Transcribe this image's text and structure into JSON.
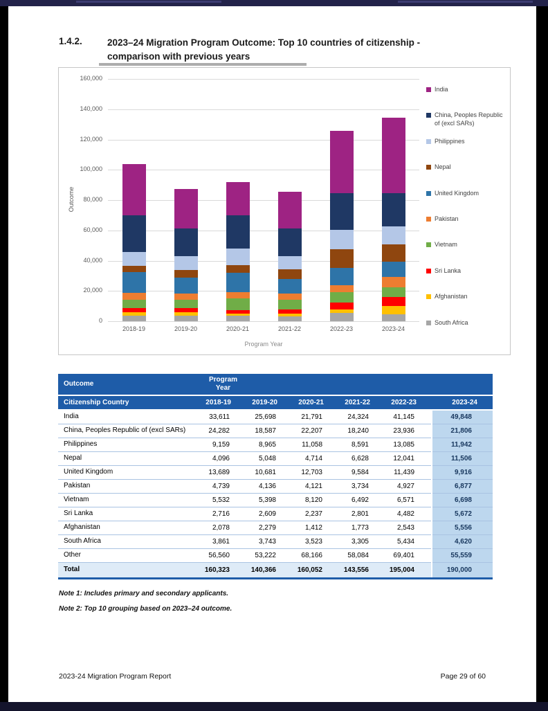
{
  "page": {
    "section_number": "1.4.2.",
    "title": "2023–24 Migration Program Outcome: Top 10 countries of citizenship - comparison with previous years",
    "note1": "Note 1: Includes primary and secondary applicants.",
    "note2": "Note 2: Top 10 grouping based on 2023–24 outcome.",
    "footer_left": "2023-24 Migration Program Report",
    "footer_right": "Page 29 of 60"
  },
  "chart_data": {
    "type": "bar",
    "stacked": true,
    "title": "",
    "xlabel": "Program Year",
    "ylabel": "Outcome",
    "ylim": [
      0,
      160000
    ],
    "ytick_step": 20000,
    "yticks": [
      "160,000",
      "140,000",
      "120,000",
      "100,000",
      "80,000",
      "60,000",
      "40,000",
      "20,000",
      "0"
    ],
    "categories": [
      "2018-19",
      "2019-20",
      "2020-21",
      "2021-22",
      "2022-23",
      "2023-24"
    ],
    "grid": true,
    "legend_position": "right",
    "stack_order": "legend order is top-of-stack first",
    "series": [
      {
        "name": "India",
        "color": "#9E2383",
        "values": [
          33611,
          25698,
          21791,
          24324,
          41145,
          49848
        ]
      },
      {
        "name": "China, Peoples Republic of (excl SARs)",
        "color": "#1F3864",
        "values": [
          24282,
          18587,
          22207,
          18240,
          23936,
          21806
        ]
      },
      {
        "name": "Philippines",
        "color": "#B4C7E7",
        "values": [
          9159,
          8965,
          11058,
          8591,
          13085,
          11942
        ]
      },
      {
        "name": "Nepal",
        "color": "#8F460F",
        "values": [
          4096,
          5048,
          4714,
          6628,
          12041,
          11506
        ]
      },
      {
        "name": "United Kingdom",
        "color": "#2E74A8",
        "values": [
          13689,
          10681,
          12703,
          9584,
          11439,
          9916
        ]
      },
      {
        "name": "Pakistan",
        "color": "#ED7D31",
        "values": [
          4739,
          4136,
          4121,
          3734,
          4927,
          6877
        ]
      },
      {
        "name": "Vietnam",
        "color": "#70AD47",
        "values": [
          5532,
          5398,
          8120,
          6492,
          6571,
          6698
        ]
      },
      {
        "name": "Sri Lanka",
        "color": "#FF0000",
        "values": [
          2716,
          2609,
          2237,
          2801,
          4482,
          5672
        ]
      },
      {
        "name": "Afghanistan",
        "color": "#FFC000",
        "values": [
          2078,
          2279,
          1412,
          1773,
          2543,
          5556
        ]
      },
      {
        "name": "South Africa",
        "color": "#A6A6A6",
        "values": [
          3861,
          3743,
          3523,
          3305,
          5434,
          4620
        ]
      }
    ]
  },
  "table": {
    "header_row1": {
      "col1": "Outcome",
      "col2": "Program Year"
    },
    "header_row2": [
      "Citizenship Country",
      "2018-19",
      "2019-20",
      "2020-21",
      "2021-22",
      "2022-23",
      "2023-24"
    ],
    "rows": [
      {
        "label": "India",
        "values": [
          "33,611",
          "25,698",
          "21,791",
          "24,324",
          "41,145",
          "49,848"
        ]
      },
      {
        "label": "China, Peoples Republic of (excl SARs)",
        "values": [
          "24,282",
          "18,587",
          "22,207",
          "18,240",
          "23,936",
          "21,806"
        ]
      },
      {
        "label": "Philippines",
        "values": [
          "9,159",
          "8,965",
          "11,058",
          "8,591",
          "13,085",
          "11,942"
        ]
      },
      {
        "label": "Nepal",
        "values": [
          "4,096",
          "5,048",
          "4,714",
          "6,628",
          "12,041",
          "11,506"
        ]
      },
      {
        "label": "United Kingdom",
        "values": [
          "13,689",
          "10,681",
          "12,703",
          "9,584",
          "11,439",
          "9,916"
        ]
      },
      {
        "label": "Pakistan",
        "values": [
          "4,739",
          "4,136",
          "4,121",
          "3,734",
          "4,927",
          "6,877"
        ]
      },
      {
        "label": "Vietnam",
        "values": [
          "5,532",
          "5,398",
          "8,120",
          "6,492",
          "6,571",
          "6,698"
        ]
      },
      {
        "label": "Sri Lanka",
        "values": [
          "2,716",
          "2,609",
          "2,237",
          "2,801",
          "4,482",
          "5,672"
        ]
      },
      {
        "label": "Afghanistan",
        "values": [
          "2,078",
          "2,279",
          "1,412",
          "1,773",
          "2,543",
          "5,556"
        ]
      },
      {
        "label": "South Africa",
        "values": [
          "3,861",
          "3,743",
          "3,523",
          "3,305",
          "5,434",
          "4,620"
        ]
      },
      {
        "label": "Other",
        "values": [
          "56,560",
          "53,222",
          "68,166",
          "58,084",
          "69,401",
          "55,559"
        ]
      }
    ],
    "total": {
      "label": "Total",
      "values": [
        "160,323",
        "140,366",
        "160,052",
        "143,556",
        "195,004",
        "190,000"
      ]
    }
  },
  "colors": {
    "table_header_blue": "#1E5CA8",
    "last_column_bg": "#BDD7EE",
    "total_row_bg": "#DEEBF7",
    "page_top_bar": "#23234A"
  }
}
